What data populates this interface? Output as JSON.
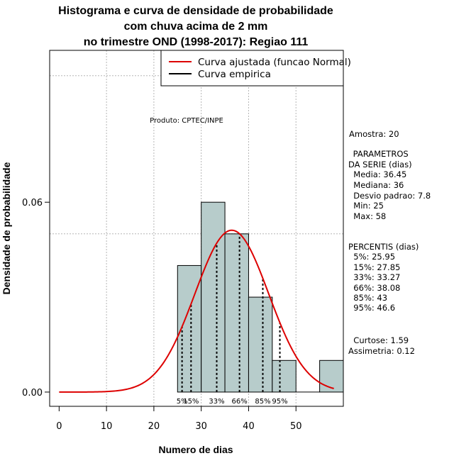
{
  "chart_data": {
    "type": "histogram",
    "title_lines": [
      "Histograma e curva de densidade de probabilidade",
      "com chuva acima de 2 mm",
      "no trimestre OND (1998-2017): Regiao 111"
    ],
    "xlabel": "Numero de dias",
    "ylabel": "Densidade de probabilidade",
    "xlim": [
      -2,
      60
    ],
    "ylim": [
      -0.0045,
      0.108
    ],
    "x_ticks": [
      0,
      10,
      20,
      30,
      40,
      50
    ],
    "y_ticks": [
      0.0,
      0.06
    ],
    "y_tick_labels": [
      "0.00",
      "0.06"
    ],
    "grid_x": [
      10,
      20,
      30,
      40,
      50
    ],
    "grid_y": [
      0.05,
      0.1
    ],
    "bins": [
      {
        "x0": 25,
        "x1": 30,
        "density": 0.04
      },
      {
        "x0": 30,
        "x1": 35,
        "density": 0.06
      },
      {
        "x0": 35,
        "x1": 40,
        "density": 0.05
      },
      {
        "x0": 40,
        "x1": 45,
        "density": 0.03
      },
      {
        "x0": 45,
        "x1": 50,
        "density": 0.01
      },
      {
        "x0": 50,
        "x1": 55,
        "density": 0.0
      },
      {
        "x0": 55,
        "x1": 60,
        "density": 0.01
      }
    ],
    "normal_fit": {
      "mean": 36.45,
      "sd": 7.8,
      "x_from": 0,
      "x_to": 58
    },
    "percentile_lines": [
      {
        "label": "5%",
        "x": 25.95
      },
      {
        "label": "15%",
        "x": 27.85
      },
      {
        "label": "33%",
        "x": 33.27
      },
      {
        "label": "66%",
        "x": 38.08
      },
      {
        "label": "85%",
        "x": 43
      },
      {
        "label": "95%",
        "x": 46.6
      }
    ],
    "legend": [
      {
        "label": "Curva ajustada (funcao Normal)",
        "color": "#dd0000"
      },
      {
        "label": "Curva empirica",
        "color": "#000000"
      }
    ],
    "product_label": "Produto: CPTEC/INPE",
    "side_text": [
      "Amostra: 20",
      " PARAMETROS",
      "DA SERIE (dias)",
      "  Media: 36.45",
      "  Mediana: 36",
      "  Desvio padrao: 7.8",
      "  Min: 25",
      "  Max: 58",
      "PERCENTIS (dias)",
      "  5%: 25.95",
      "  15%: 27.85",
      "  33%: 33.27",
      "  66%: 38.08",
      "  85%: 43",
      "  95%: 46.6",
      "  Curtose: 1.59",
      "Assimetria: 0.12"
    ]
  },
  "colors": {
    "bar_fill": "#b7cccb",
    "curve": "#dd0000",
    "grid": "#b5b5b5"
  }
}
